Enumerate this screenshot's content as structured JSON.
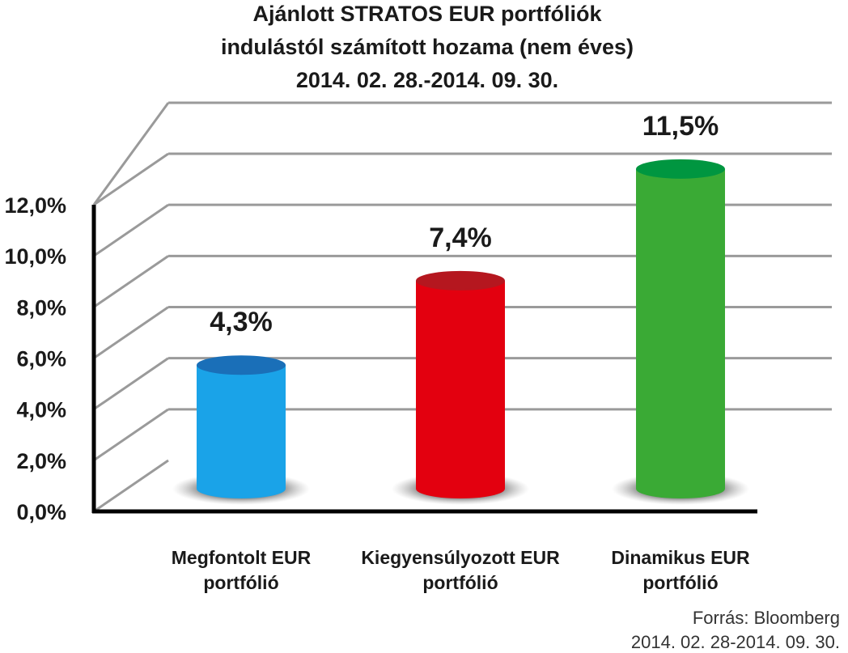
{
  "chart_data": {
    "type": "bar",
    "title_lines": [
      "Ajánlott STRATOS EUR portfóliók",
      "indulástól számított hozama (nem éves)",
      "2014. 02. 28.-2014. 09. 30."
    ],
    "categories": [
      [
        "Megfontolt EUR",
        "portfólió"
      ],
      [
        "Kiegyensúlyozott EUR",
        "portfólió"
      ],
      [
        "Dinamikus EUR",
        "portfólió"
      ]
    ],
    "values": [
      4.3,
      7.4,
      11.5
    ],
    "data_labels": [
      "4,3%",
      "7,4%",
      "11,5%"
    ],
    "colors": {
      "bars": [
        "#1aa3e8",
        "#e3000f",
        "#3aaa35"
      ],
      "tops": [
        "#1a6fb8",
        "#b5171f",
        "#009640"
      ]
    },
    "ylim": [
      0,
      12
    ],
    "yticks": [
      {
        "value": 0,
        "label": "0,0%"
      },
      {
        "value": 2,
        "label": "2,0%"
      },
      {
        "value": 4,
        "label": "4,0%"
      },
      {
        "value": 6,
        "label": "6,0%"
      },
      {
        "value": 8,
        "label": "8,0%"
      },
      {
        "value": 10,
        "label": "10,0%"
      },
      {
        "value": 12,
        "label": "12,0%"
      }
    ],
    "grid": true,
    "source": [
      "Forrás: Bloomberg",
      "2014. 02. 28-2014. 09. 30."
    ]
  }
}
